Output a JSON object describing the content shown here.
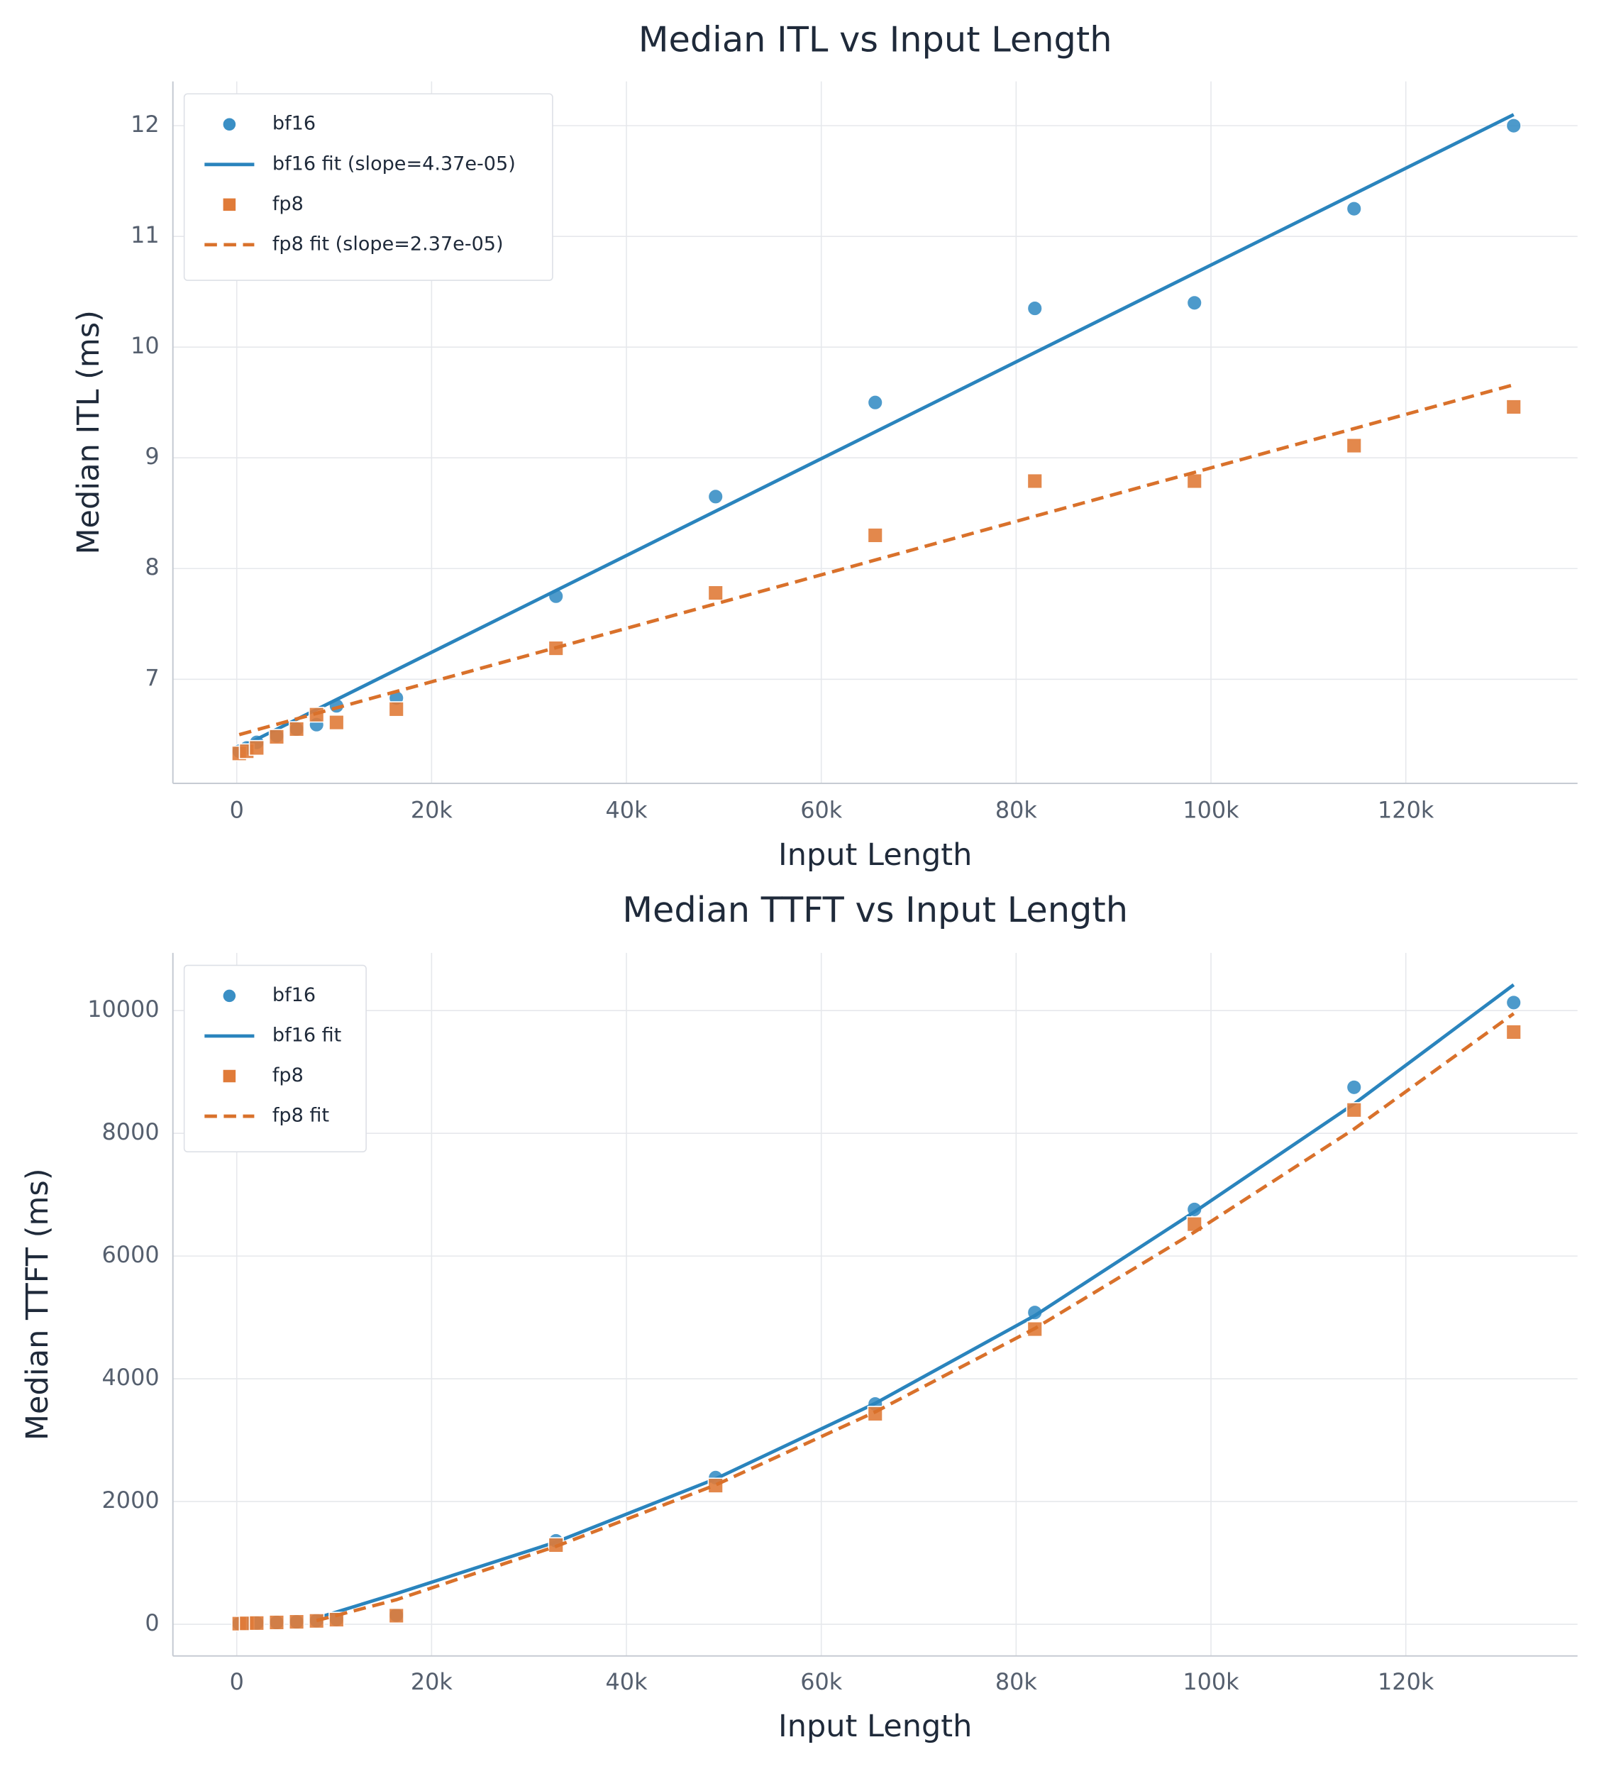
{
  "chart_data": [
    {
      "type": "scatter",
      "title": "Median ITL vs Input Length",
      "x_label": "Input Length",
      "y_label": "Median ITL (ms)",
      "xlim": [
        -6554,
        137626
      ],
      "ylim": [
        6.06,
        12.4
      ],
      "xticks": [
        0,
        {
          "value": 20000,
          "label": "20k"
        },
        {
          "value": 40000,
          "label": "40k"
        },
        {
          "value": 60000,
          "label": "60k"
        },
        {
          "value": 80000,
          "label": "80k"
        },
        {
          "value": 100000,
          "label": "100k"
        },
        {
          "value": 120000,
          "label": "120k"
        }
      ],
      "yticks": [
        7,
        8,
        9,
        10,
        11,
        12
      ],
      "grid": true,
      "legend": "upper left",
      "series": [
        {
          "name": "bf16",
          "color": "#3a8fc5",
          "style": "points",
          "marker": "circle",
          "x": [
            256,
            1024,
            2048,
            4096,
            6144,
            8192,
            10240,
            16384,
            32768,
            49152,
            65536,
            81920,
            98304,
            114688,
            131072
          ],
          "values": [
            6.35,
            6.38,
            6.43,
            6.49,
            6.55,
            6.59,
            6.76,
            6.83,
            7.75,
            8.65,
            9.5,
            10.35,
            10.4,
            11.25,
            12.0
          ]
        },
        {
          "name": "bf16 fit (slope=4.37e-05)",
          "color": "#2a84bd",
          "style": "line",
          "dash": false,
          "x": [
            256,
            131072
          ],
          "values": [
            6.38,
            12.1
          ]
        },
        {
          "name": "fp8",
          "color": "#e07b39",
          "style": "points",
          "marker": "square",
          "x": [
            256,
            1024,
            2048,
            4096,
            6144,
            8192,
            10240,
            16384,
            32768,
            49152,
            65536,
            81920,
            98304,
            114688,
            131072
          ],
          "values": [
            6.33,
            6.35,
            6.38,
            6.48,
            6.55,
            6.68,
            6.61,
            6.73,
            7.28,
            7.78,
            8.3,
            8.79,
            8.79,
            9.11,
            9.46
          ]
        },
        {
          "name": "fp8 fit (slope=2.37e-05)",
          "color": "#d9712b",
          "style": "line",
          "dash": true,
          "x": [
            256,
            131072
          ],
          "values": [
            6.5,
            9.66
          ]
        }
      ]
    },
    {
      "type": "scatter",
      "title": "Median TTFT vs Input Length",
      "x_label": "Input Length",
      "y_label": "Median TTFT (ms)",
      "xlim": [
        -6554,
        137626
      ],
      "ylim": [
        -516,
        10940
      ],
      "xticks": [
        0,
        {
          "value": 20000,
          "label": "20k"
        },
        {
          "value": 40000,
          "label": "40k"
        },
        {
          "value": 60000,
          "label": "60k"
        },
        {
          "value": 80000,
          "label": "80k"
        },
        {
          "value": 100000,
          "label": "100k"
        },
        {
          "value": 120000,
          "label": "120k"
        }
      ],
      "yticks": [
        0,
        2000,
        4000,
        6000,
        8000,
        10000
      ],
      "grid": true,
      "legend": "upper left",
      "series": [
        {
          "name": "bf16",
          "color": "#3a8fc5",
          "style": "points",
          "marker": "circle",
          "x": [
            256,
            1024,
            2048,
            4096,
            6144,
            8192,
            10240,
            16384,
            32768,
            49152,
            65536,
            81920,
            98304,
            114688,
            131072
          ],
          "values": [
            10,
            15,
            20,
            30,
            40,
            60,
            80,
            150,
            1360,
            2390,
            3590,
            5080,
            6760,
            8750,
            10130
          ]
        },
        {
          "name": "bf16 fit",
          "color": "#2a84bd",
          "style": "line",
          "dash": false,
          "x": [
            8192,
            16384,
            32768,
            49152,
            65536,
            81920,
            98304,
            114688,
            131072
          ],
          "values": [
            100,
            500,
            1340,
            2370,
            3600,
            5030,
            6720,
            8480,
            10420
          ]
        },
        {
          "name": "fp8",
          "color": "#e07b39",
          "style": "points",
          "marker": "square",
          "x": [
            256,
            1024,
            2048,
            4096,
            6144,
            8192,
            10240,
            16384,
            32768,
            49152,
            65536,
            81920,
            98304,
            114688,
            131072
          ],
          "values": [
            10,
            15,
            20,
            30,
            40,
            55,
            75,
            140,
            1290,
            2260,
            3430,
            4810,
            6520,
            8380,
            9650
          ]
        },
        {
          "name": "fp8 fit",
          "color": "#d9712b",
          "style": "line",
          "dash": true,
          "x": [
            8192,
            16384,
            32768,
            49152,
            65536,
            81920,
            98304,
            114688,
            131072
          ],
          "values": [
            60,
            400,
            1270,
            2270,
            3460,
            4820,
            6390,
            8070,
            9950
          ]
        }
      ]
    }
  ]
}
